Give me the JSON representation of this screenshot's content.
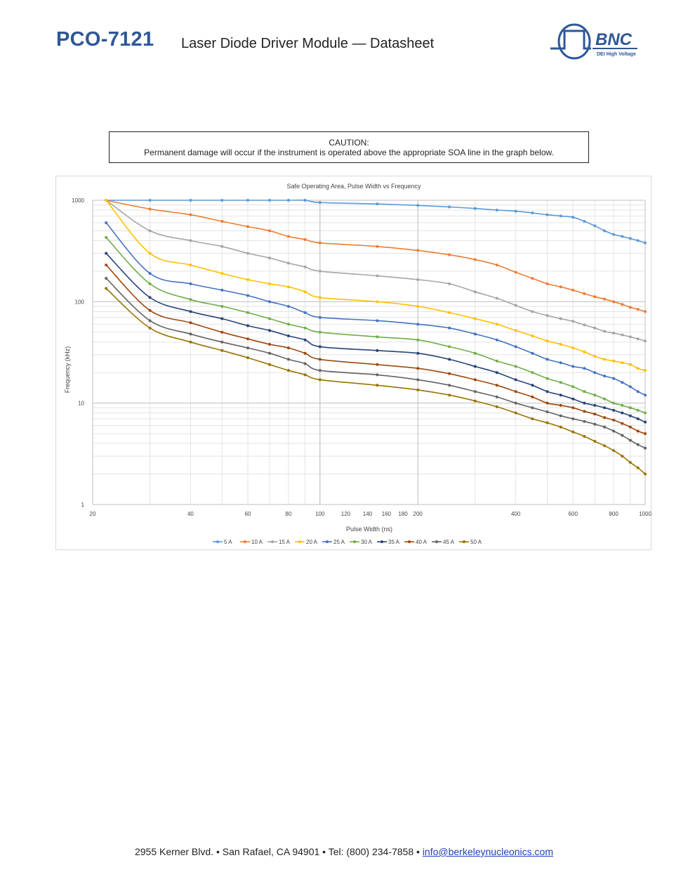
{
  "header": {
    "model": "PCO-7121",
    "title": "Laser Diode Driver Module — Datasheet",
    "logo_text": "BNC",
    "logo_tagline": "DEI High Voltage"
  },
  "caution": {
    "heading": "CAUTION:",
    "text": "Permanent damage will occur if the instrument is operated above the appropriate SOA line in the graph below."
  },
  "chart_data": {
    "type": "line",
    "title": "Safe Operating Area, Pulse Width vs Frequency",
    "xlabel": "Pulse Width (ns)",
    "ylabel": "Frequency (kHz)",
    "xscale": "log",
    "yscale": "log",
    "xlim": [
      20,
      1000
    ],
    "ylim": [
      1,
      1000
    ],
    "x_ticks": [
      20,
      40,
      60,
      80,
      100,
      120,
      140,
      160,
      180,
      200,
      400,
      600,
      800,
      1000
    ],
    "y_ticks": [
      1,
      10,
      100,
      1000
    ],
    "grid": true,
    "legend": "bottom",
    "x": [
      22,
      30,
      40,
      50,
      60,
      70,
      80,
      90,
      100,
      150,
      200,
      250,
      300,
      350,
      400,
      450,
      500,
      550,
      600,
      650,
      700,
      750,
      800,
      850,
      900,
      950,
      1000
    ],
    "series": [
      {
        "name": "5 A",
        "color": "#5b9bd5",
        "values": [
          1000,
          1000,
          1000,
          1000,
          1000,
          1000,
          1000,
          1000,
          950,
          920,
          890,
          860,
          830,
          800,
          780,
          750,
          720,
          700,
          680,
          620,
          560,
          500,
          460,
          440,
          420,
          400,
          380
        ]
      },
      {
        "name": "10 A",
        "color": "#ed7d31",
        "values": [
          1000,
          820,
          720,
          620,
          550,
          500,
          440,
          410,
          380,
          350,
          320,
          290,
          260,
          230,
          195,
          170,
          150,
          140,
          130,
          120,
          112,
          106,
          100,
          94,
          88,
          84,
          80
        ]
      },
      {
        "name": "15 A",
        "color": "#a5a5a5",
        "values": [
          1000,
          500,
          400,
          350,
          300,
          270,
          240,
          220,
          200,
          180,
          165,
          150,
          125,
          108,
          92,
          80,
          73,
          68,
          64,
          59,
          55,
          51,
          49,
          47,
          45,
          43,
          41
        ]
      },
      {
        "name": "20 A",
        "color": "#ffc000",
        "values": [
          1000,
          300,
          230,
          190,
          165,
          150,
          140,
          125,
          110,
          100,
          90,
          78,
          68,
          60,
          52,
          46,
          41,
          38,
          35,
          32,
          29,
          27,
          26,
          25,
          24,
          22,
          21
        ]
      },
      {
        "name": "25 A",
        "color": "#4472c4",
        "values": [
          600,
          190,
          150,
          130,
          115,
          100,
          90,
          78,
          70,
          65,
          60,
          55,
          48,
          42,
          36,
          31,
          27,
          25,
          23,
          22,
          20,
          18.5,
          17.5,
          16,
          14.5,
          13,
          12
        ]
      },
      {
        "name": "30 A",
        "color": "#70ad47",
        "values": [
          430,
          150,
          105,
          90,
          78,
          68,
          60,
          55,
          50,
          45,
          42,
          36,
          31,
          26,
          23,
          20,
          17.5,
          16,
          14.5,
          13,
          12,
          11,
          10,
          9.5,
          9,
          8.5,
          8
        ]
      },
      {
        "name": "35 A",
        "color": "#264478",
        "values": [
          300,
          110,
          80,
          68,
          58,
          52,
          46,
          42,
          36,
          33,
          31,
          27,
          23,
          20,
          17,
          15,
          13,
          12,
          11,
          10,
          9.5,
          9,
          8.5,
          8,
          7.5,
          7,
          6.5
        ]
      },
      {
        "name": "40 A",
        "color": "#9e480e",
        "values": [
          230,
          82,
          62,
          50,
          43,
          38,
          35,
          31,
          27,
          24,
          22,
          19.5,
          17,
          15,
          13,
          11.5,
          10,
          9.5,
          9,
          8.3,
          7.8,
          7.2,
          6.8,
          6.3,
          5.8,
          5.3,
          5
        ]
      },
      {
        "name": "45 A",
        "color": "#636363",
        "values": [
          170,
          65,
          48,
          40,
          35,
          31,
          27,
          24.5,
          21,
          19,
          17,
          15,
          13,
          11.5,
          10,
          9,
          8.2,
          7.5,
          7,
          6.6,
          6.2,
          5.8,
          5.3,
          4.8,
          4.3,
          3.9,
          3.6
        ]
      },
      {
        "name": "50 A",
        "color": "#997300",
        "values": [
          135,
          55,
          40,
          33,
          28,
          24,
          21,
          19,
          17,
          15,
          13.5,
          12,
          10.5,
          9.2,
          8,
          7,
          6.4,
          5.8,
          5.2,
          4.7,
          4.2,
          3.8,
          3.4,
          3,
          2.6,
          2.3,
          2
        ]
      }
    ]
  },
  "footer": {
    "address": "2955 Kerner Blvd. • San Rafael, CA 94901 • Tel: (800) 234-7858 •",
    "email": "info@berkeleynucleonics.com"
  }
}
